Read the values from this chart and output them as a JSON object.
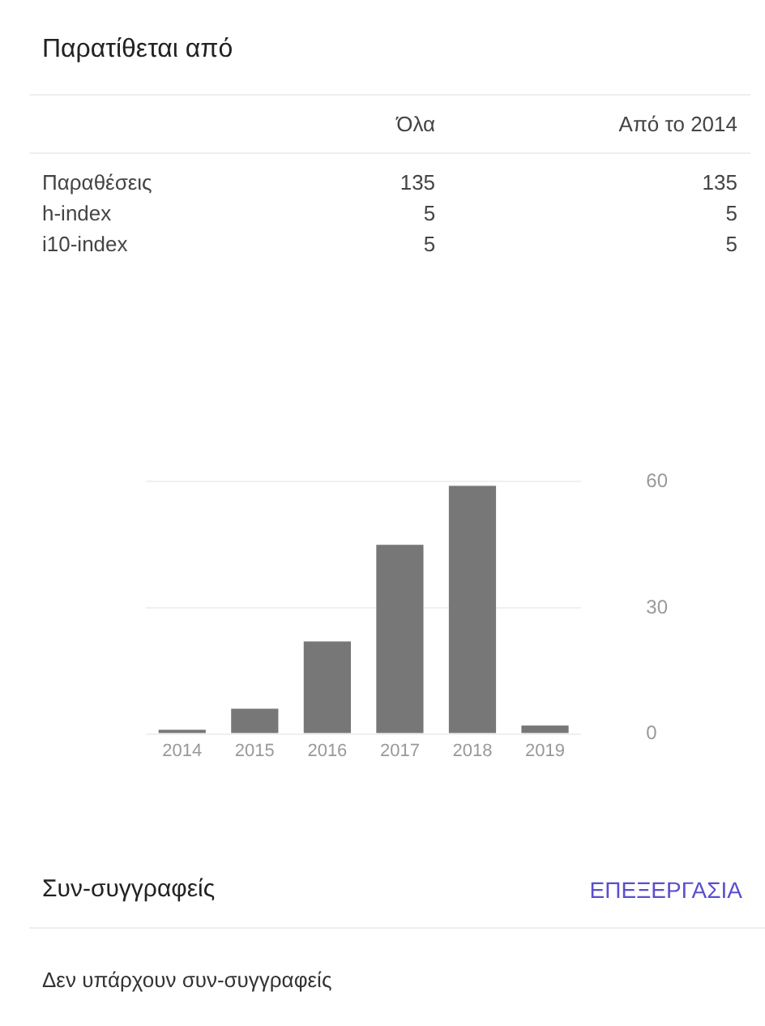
{
  "chart_data": [
    {
      "type": "other",
      "title": "Παρατίθεται από",
      "categories": [
        "Όλα",
        "Από το 2014"
      ],
      "y_categories": [
        "Παραθέσεις",
        "h-index",
        "i10-index"
      ],
      "cell_labels": [
        [
          "135",
          "135"
        ],
        [
          "5",
          "5"
        ],
        [
          "5",
          "5"
        ]
      ]
    },
    {
      "type": "bar",
      "categories": [
        "2014",
        "2015",
        "2016",
        "2017",
        "2018",
        "2019"
      ],
      "values": [
        1,
        6,
        22,
        45,
        59,
        2
      ],
      "color": "#777777",
      "ylim": [
        0,
        60
      ],
      "yticks": [
        0,
        30,
        60
      ],
      "grid": "y",
      "legend": false
    },
    {
      "type": "other",
      "title": "Συν-συγγραφείς",
      "annotations": [
        "ΕΠΕΞΕΡΓΑΣΙΑ",
        "Δεν υπάρχουν συν-συγγραφείς"
      ]
    }
  ]
}
